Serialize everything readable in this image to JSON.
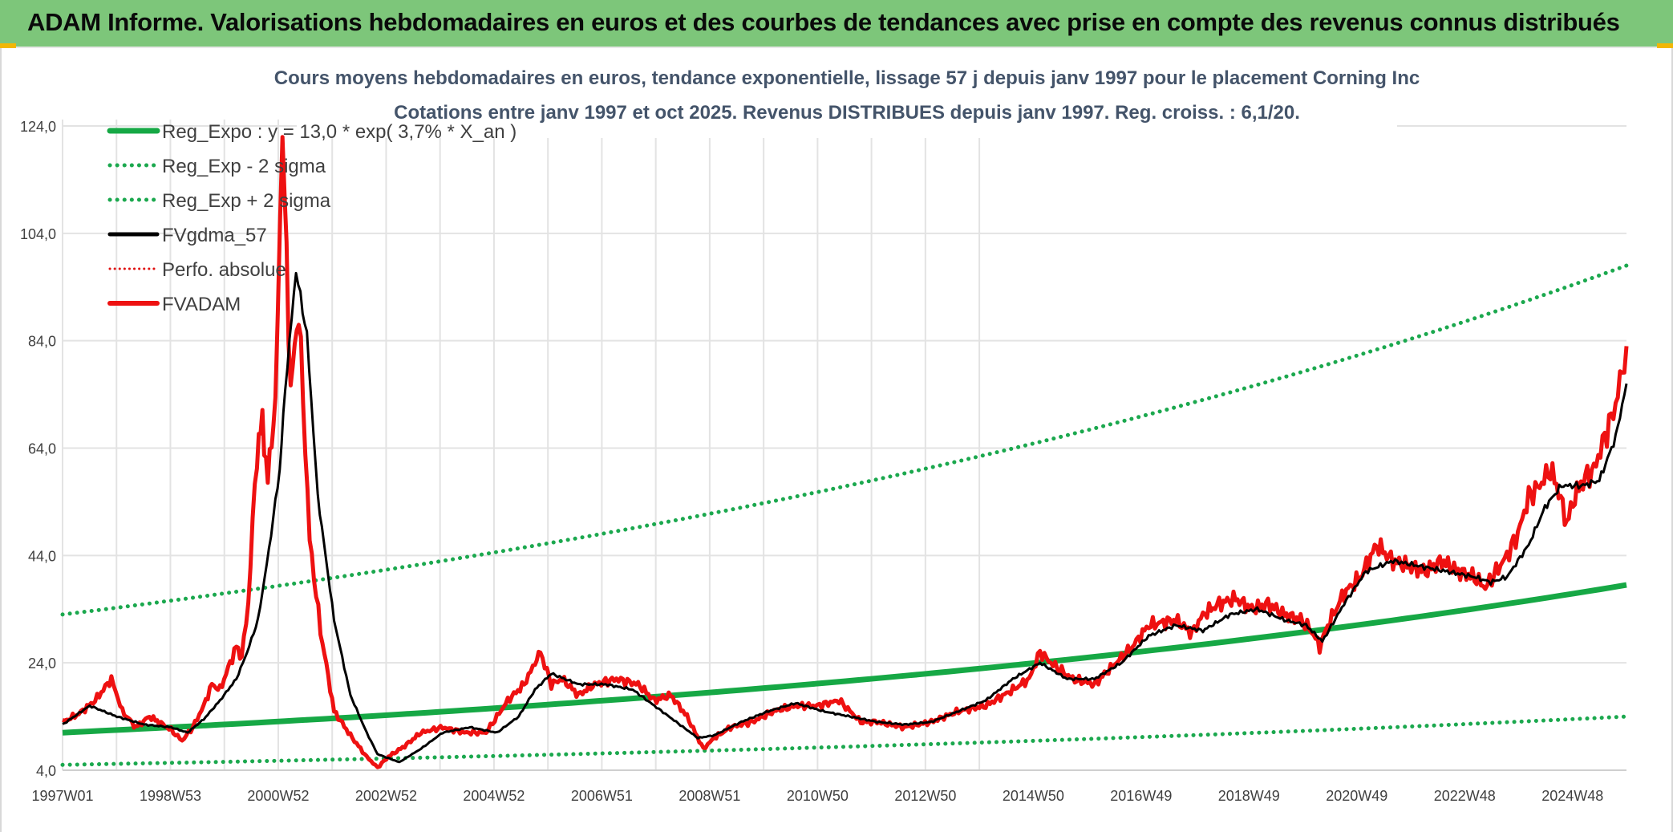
{
  "banner": {
    "title": "ADAM Informe. Valorisations hebdomadaires en euros et des courbes de tendances avec prise en compte des revenus connus distribués"
  },
  "colors": {
    "banner_bg": "#7dc67a",
    "reg_expo": "#16a845",
    "sigma": "#1ba84e",
    "fvgdma": "#000000",
    "perfo": "#e01010",
    "fvadam": "#ee1111",
    "grid": "#e3e3e3"
  },
  "chart_data": {
    "type": "line",
    "title": "Cours moyens hebdomadaires en euros, tendance exponentielle, lissage 57 j depuis janv 1997 pour le placement Corning Inc",
    "subtitle": "Cotations entre janv 1997 et oct 2025. Revenus DISTRIBUES depuis janv 1997. Reg. croiss. : 6,1/20.",
    "xlabel": "",
    "ylabel": "",
    "x_range": [
      1997.0,
      2025.8
    ],
    "ylim": [
      4,
      124
    ],
    "yticks": [
      4,
      24,
      44,
      64,
      84,
      104,
      124
    ],
    "ytick_labels": [
      "4,0",
      "24,0",
      "44,0",
      "64,0",
      "84,0",
      "104,0",
      "124,0"
    ],
    "xtick_labels": [
      "1997W01",
      "1998W53",
      "2000W52",
      "2002W52",
      "2004W52",
      "2006W51",
      "2008W51",
      "2010W50",
      "2012W50",
      "2014W50",
      "2016W49",
      "2018W49",
      "2020W49",
      "2022W48",
      "2024W48"
    ],
    "grid": true,
    "legend_position": "top-left",
    "legend": [
      {
        "name": "Reg_Expo : y = 13,0 * exp( 3,7% *  X_an )",
        "style": "solid-green"
      },
      {
        "name": "Reg_Exp - 2 sigma",
        "style": "dotted-green"
      },
      {
        "name": "Reg_Exp + 2 sigma",
        "style": "dotted-green"
      },
      {
        "name": "FVgdma_57",
        "style": "solid-black"
      },
      {
        "name": "Perfo. absolue",
        "style": "dotted-red"
      },
      {
        "name": "FVADAM",
        "style": "solid-red"
      }
    ],
    "series": [
      {
        "name": "Reg_Expo",
        "x": [
          1997.0,
          2025.8
        ],
        "values": [
          11.0,
          38.5
        ],
        "model": "exponential"
      },
      {
        "name": "Reg_Exp - 2 sigma",
        "x": [
          1997.0,
          2025.8
        ],
        "values": [
          5.0,
          14.0
        ],
        "model": "exponential"
      },
      {
        "name": "Reg_Exp + 2 sigma",
        "x": [
          1997.0,
          2025.8
        ],
        "values": [
          33.0,
          98.0
        ],
        "model": "exponential"
      },
      {
        "name": "FVADAM",
        "x": [
          1997.0,
          1997.3,
          1997.6,
          1997.9,
          1998.1,
          1998.35,
          1998.6,
          1998.85,
          1999.0,
          1999.2,
          1999.4,
          1999.6,
          1999.75,
          1999.9,
          2000.05,
          2000.2,
          2000.3,
          2000.42,
          2000.5,
          2000.58,
          2000.68,
          2000.78,
          2000.92,
          2001.05,
          2001.2,
          2001.35,
          2001.55,
          2001.75,
          2002.0,
          2002.3,
          2002.6,
          2002.8,
          2003.0,
          2003.3,
          2003.6,
          2004.0,
          2004.4,
          2004.8,
          2005.2,
          2005.5,
          2005.7,
          2005.8,
          2006.0,
          2006.2,
          2006.5,
          2006.8,
          2007.2,
          2007.6,
          2007.9,
          2008.2,
          2008.5,
          2008.8,
          2009.0,
          2009.3,
          2009.7,
          2010.1,
          2010.5,
          2010.9,
          2011.3,
          2011.7,
          2012.0,
          2012.5,
          2013.0,
          2013.5,
          2014.0,
          2014.5,
          2014.8,
          2015.0,
          2015.2,
          2015.6,
          2016.0,
          2016.3,
          2016.7,
          2017.0,
          2017.5,
          2017.8,
          2018.0,
          2018.3,
          2018.6,
          2018.9,
          2019.2,
          2019.5,
          2019.8,
          2020.0,
          2020.15,
          2020.3,
          2020.6,
          2020.9,
          2021.2,
          2021.5,
          2021.8,
          2022.1,
          2022.4,
          2022.7,
          2023.0,
          2023.2,
          2023.4,
          2023.6,
          2023.8,
          2024.0,
          2024.2,
          2024.4,
          2024.55,
          2024.7,
          2024.85,
          2025.0,
          2025.2,
          2025.4,
          2025.6,
          2025.8
        ],
        "values": [
          13,
          14.5,
          17,
          21,
          15,
          12,
          14,
          12.5,
          11.5,
          9.5,
          12,
          16,
          20,
          19,
          23,
          27,
          25,
          35,
          50,
          63,
          69,
          58,
          73,
          123,
          75,
          90,
          47,
          30,
          15,
          10.5,
          6.5,
          4.5,
          6.5,
          8.5,
          11,
          12,
          11,
          11,
          17,
          20,
          24,
          26,
          20,
          21,
          18,
          20,
          21,
          20,
          17,
          18,
          14,
          8,
          10,
          12,
          13,
          15,
          16,
          16,
          17,
          13,
          13,
          12,
          13,
          15,
          16,
          19,
          21,
          26,
          24,
          21,
          20,
          23,
          27,
          31,
          32,
          29.5,
          33,
          35,
          36,
          34,
          35,
          33,
          32,
          30,
          27,
          31,
          37,
          40,
          46,
          43,
          42,
          41,
          43,
          41,
          40,
          38,
          41,
          44,
          48,
          55,
          57,
          60,
          56,
          50,
          55,
          58,
          60,
          66,
          72,
          83
        ]
      },
      {
        "name": "FVgdma_57",
        "x": [
          1997.0,
          1997.5,
          1998.0,
          1998.5,
          1999.0,
          1999.3,
          1999.6,
          1999.9,
          2000.2,
          2000.4,
          2000.6,
          2000.8,
          2001.0,
          2001.1,
          2001.3,
          2001.5,
          2001.7,
          2002.0,
          2002.3,
          2002.6,
          2002.8,
          2003.2,
          2003.6,
          2004.0,
          2004.5,
          2005.0,
          2005.4,
          2005.7,
          2006.0,
          2006.5,
          2007.0,
          2007.5,
          2007.9,
          2008.3,
          2008.7,
          2009.0,
          2009.5,
          2010.0,
          2010.5,
          2011.0,
          2011.5,
          2012.0,
          2012.5,
          2013.0,
          2013.5,
          2014.0,
          2014.5,
          2015.0,
          2015.5,
          2016.0,
          2016.5,
          2017.0,
          2017.5,
          2018.0,
          2018.5,
          2019.0,
          2019.5,
          2019.9,
          2020.2,
          2020.6,
          2021.0,
          2021.5,
          2022.0,
          2022.5,
          2023.0,
          2023.3,
          2023.6,
          2024.0,
          2024.3,
          2024.6,
          2025.0,
          2025.3,
          2025.6,
          2025.8
        ],
        "values": [
          12.5,
          16,
          14,
          12.5,
          12,
          11,
          13.5,
          17,
          21,
          26,
          32,
          45,
          60,
          75,
          97,
          85,
          55,
          32,
          18,
          11,
          7,
          5.5,
          8,
          11,
          12,
          11,
          14,
          19,
          22,
          20,
          20,
          19,
          16,
          13,
          10,
          10.5,
          13,
          15,
          16.5,
          15,
          14,
          13,
          12.5,
          13,
          15,
          17,
          21,
          24,
          21,
          21,
          24,
          29,
          31,
          30,
          33,
          34,
          32,
          31,
          28,
          35,
          41,
          43,
          42,
          41,
          40,
          39,
          40,
          46,
          53,
          57,
          57,
          58,
          66,
          76
        ]
      }
    ]
  }
}
